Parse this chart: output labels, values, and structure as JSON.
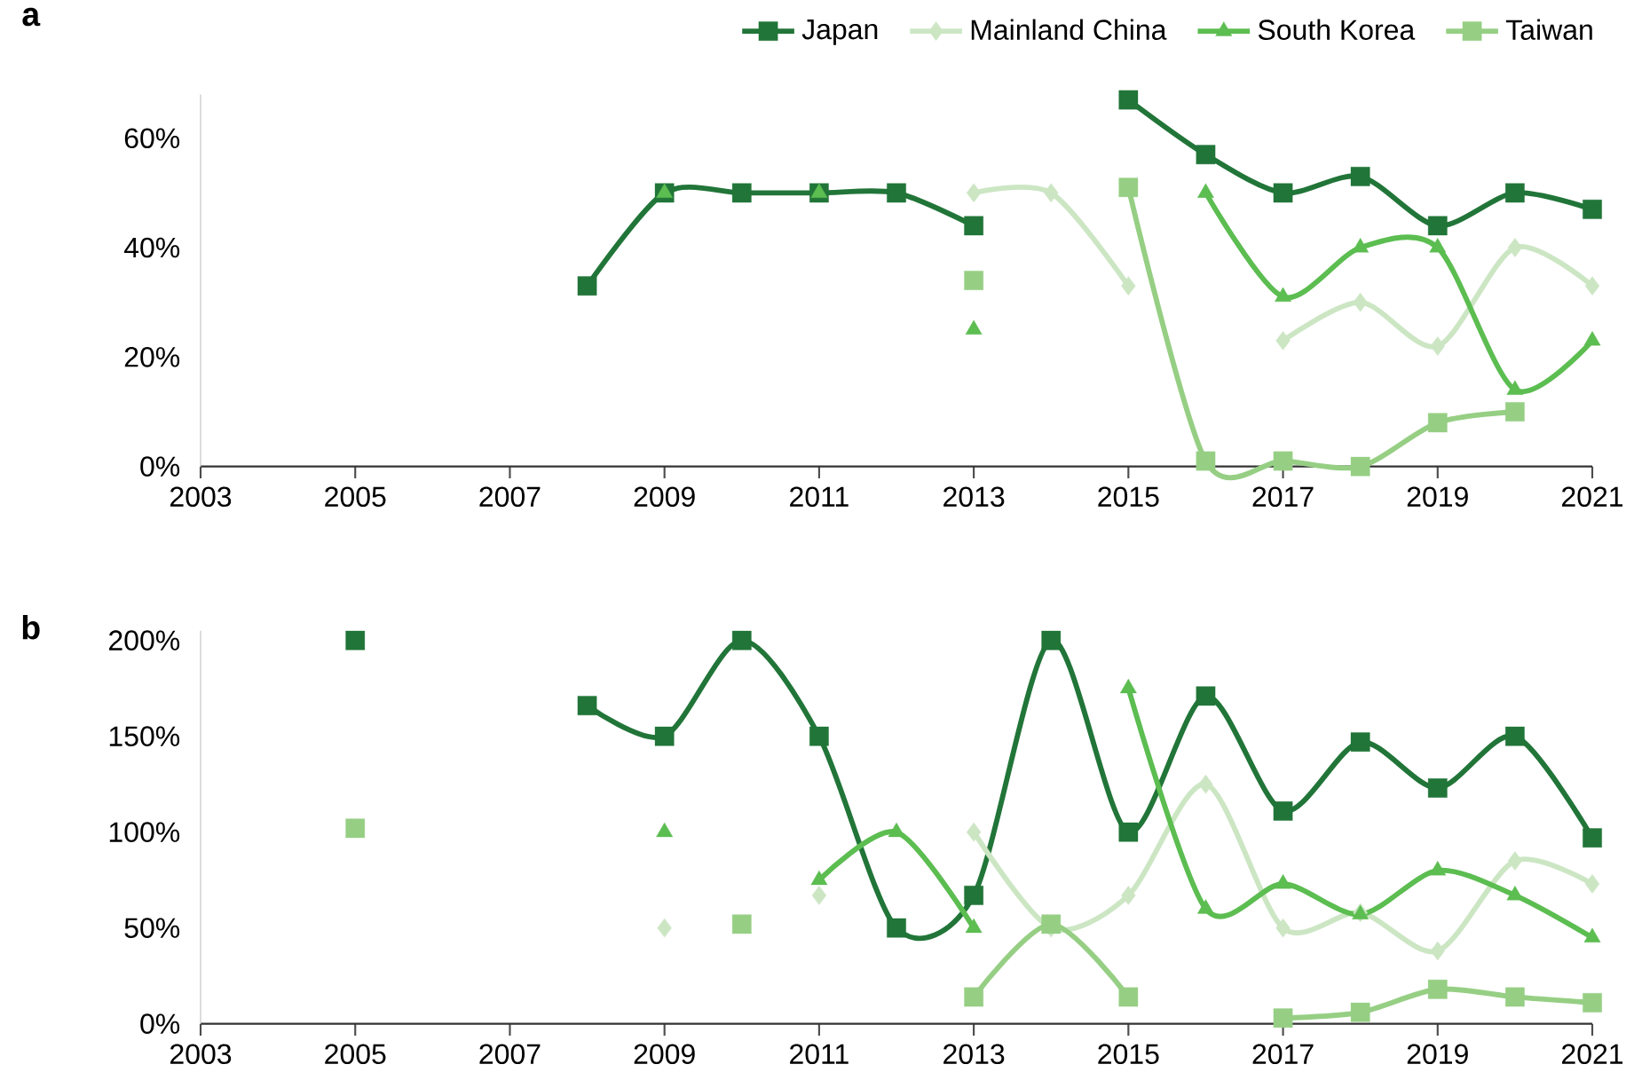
{
  "chart_data": [
    {
      "type": "line",
      "title": "a",
      "xlim": [
        2003,
        2021
      ],
      "xticks": [
        2003,
        2005,
        2007,
        2009,
        2011,
        2013,
        2015,
        2017,
        2019,
        2021
      ],
      "ylim": [
        0,
        68
      ],
      "yticks": [
        {
          "value": 0,
          "label": "0%"
        },
        {
          "value": 20,
          "label": "20%"
        },
        {
          "value": 40,
          "label": "40%"
        },
        {
          "value": 60,
          "label": "60%"
        }
      ],
      "legend": "top right",
      "grid": false,
      "x": [
        2008,
        2009,
        2010,
        2011,
        2012,
        2013,
        2014,
        2015,
        2016,
        2017,
        2018,
        2019,
        2020,
        2021
      ],
      "series": [
        {
          "name": "Japan",
          "color": "#217538",
          "marker": "square",
          "values": [
            33,
            50,
            50,
            50,
            50,
            44,
            null,
            67,
            57,
            50,
            53,
            44,
            50,
            47
          ]
        },
        {
          "name": "Mainland China",
          "color": "#cce6c4",
          "marker": "diamond",
          "values": [
            null,
            null,
            null,
            null,
            null,
            50,
            50,
            33,
            null,
            23,
            30,
            22,
            40,
            33
          ]
        },
        {
          "name": "South Korea",
          "color": "#5cbd51",
          "marker": "triangle",
          "values": [
            null,
            50,
            null,
            50,
            null,
            25,
            null,
            null,
            50,
            31,
            40,
            40,
            14,
            23
          ]
        },
        {
          "name": "Taiwan",
          "color": "#96cf84",
          "marker": "square",
          "values": [
            null,
            null,
            null,
            null,
            null,
            34,
            null,
            51,
            1,
            1,
            0,
            8,
            10,
            null
          ]
        }
      ]
    },
    {
      "type": "line",
      "title": "b",
      "xlim": [
        2003,
        2021
      ],
      "xticks": [
        2003,
        2005,
        2007,
        2009,
        2011,
        2013,
        2015,
        2017,
        2019,
        2021
      ],
      "ylim": [
        0,
        205
      ],
      "yticks": [
        {
          "value": 0,
          "label": "0%"
        },
        {
          "value": 50,
          "label": "50%"
        },
        {
          "value": 100,
          "label": "100%"
        },
        {
          "value": 150,
          "label": "150%"
        },
        {
          "value": 200,
          "label": "200%"
        }
      ],
      "grid": false,
      "x": [
        2005,
        2006,
        2007,
        2008,
        2009,
        2010,
        2011,
        2012,
        2013,
        2014,
        2015,
        2016,
        2017,
        2018,
        2019,
        2020,
        2021
      ],
      "series": [
        {
          "color": "#217538",
          "marker": "square",
          "values": [
            200,
            null,
            null,
            166,
            150,
            200,
            150,
            50,
            67,
            200,
            100,
            171,
            111,
            147,
            123,
            150,
            97
          ]
        },
        {
          "color": "#cce6c4",
          "marker": "diamond",
          "values": [
            null,
            null,
            null,
            null,
            50,
            null,
            67,
            null,
            100,
            50,
            67,
            125,
            50,
            58,
            38,
            85,
            73
          ]
        },
        {
          "color": "#5cbd51",
          "marker": "triangle",
          "values": [
            null,
            null,
            null,
            null,
            100,
            null,
            75,
            100,
            50,
            null,
            175,
            60,
            73,
            57,
            80,
            67,
            45
          ]
        },
        {
          "color": "#96cf84",
          "marker": "square",
          "values": [
            102,
            null,
            null,
            null,
            null,
            52,
            null,
            null,
            14,
            52,
            14,
            null,
            3,
            6,
            18,
            14,
            11
          ]
        }
      ]
    }
  ]
}
